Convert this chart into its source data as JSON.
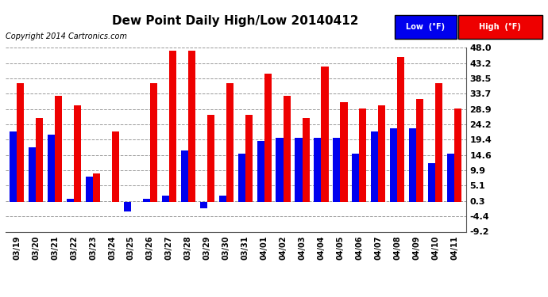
{
  "title": "Dew Point Daily High/Low 20140412",
  "copyright": "Copyright 2014 Cartronics.com",
  "categories": [
    "03/19",
    "03/20",
    "03/21",
    "03/22",
    "03/23",
    "03/24",
    "03/25",
    "03/26",
    "03/27",
    "03/28",
    "03/29",
    "03/30",
    "03/31",
    "04/01",
    "04/02",
    "04/03",
    "04/04",
    "04/05",
    "04/06",
    "04/07",
    "04/08",
    "04/09",
    "04/10",
    "04/11"
  ],
  "low_values": [
    22,
    17,
    21,
    1,
    8,
    0,
    -3,
    1,
    2,
    16,
    -2,
    2,
    15,
    19,
    20,
    20,
    20,
    20,
    15,
    22,
    23,
    23,
    12,
    15
  ],
  "high_values": [
    37,
    26,
    33,
    30,
    9,
    22,
    0,
    37,
    47,
    47,
    27,
    37,
    27,
    40,
    33,
    26,
    42,
    31,
    29,
    30,
    45,
    32,
    37,
    29
  ],
  "low_color": "#0000ee",
  "high_color": "#ee0000",
  "bg_color": "#ffffff",
  "plot_bg_color": "#ffffff",
  "grid_color": "#999999",
  "ytick_labels": [
    "-9.2",
    "-4.4",
    "0.3",
    "5.1",
    "9.9",
    "14.6",
    "19.4",
    "24.2",
    "28.9",
    "33.7",
    "38.5",
    "43.2",
    "48.0"
  ],
  "ytick_values": [
    -9.2,
    -4.4,
    0.3,
    5.1,
    9.9,
    14.6,
    19.4,
    24.2,
    28.9,
    33.7,
    38.5,
    43.2,
    48.0
  ],
  "ymin": -9.2,
  "ymax": 48.0,
  "legend_low_label": "Low  (°F)",
  "legend_high_label": "High  (°F)"
}
